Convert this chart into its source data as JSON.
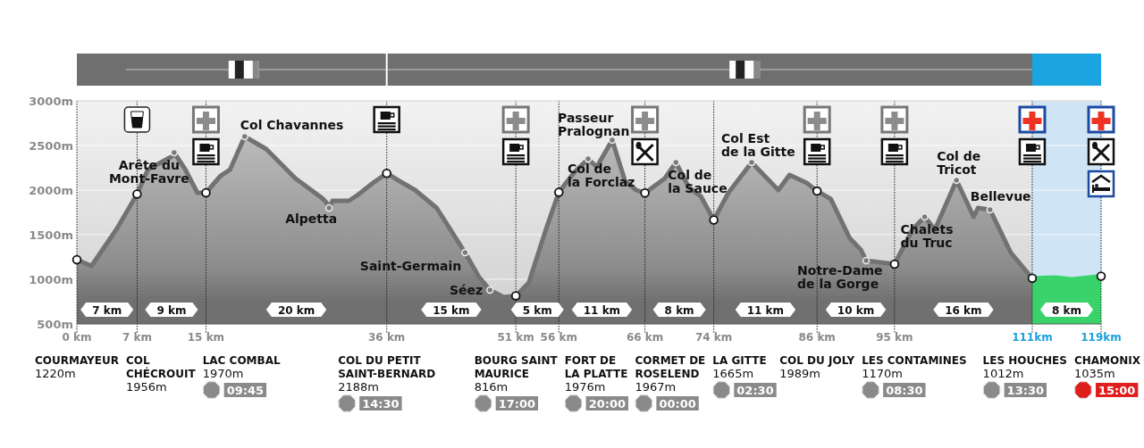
{
  "chart_data": {
    "type": "area",
    "xlim": [
      0,
      119
    ],
    "ylim": [
      500,
      3000
    ],
    "xticks": [
      {
        "value": 0,
        "label": "0 km"
      },
      {
        "value": 7,
        "label": "7 km"
      },
      {
        "value": 15,
        "label": "15 km"
      },
      {
        "value": 36,
        "label": "36 km"
      },
      {
        "value": 51,
        "label": "51 km"
      },
      {
        "value": 56,
        "label": "56 km"
      },
      {
        "value": 66,
        "label": "66 km"
      },
      {
        "value": 74,
        "label": "74 km"
      },
      {
        "value": 86,
        "label": "86 km"
      },
      {
        "value": 95,
        "label": "95 km"
      },
      {
        "value": 111,
        "label": "111km"
      },
      {
        "value": 119,
        "label": "119km"
      }
    ],
    "yticks": [
      {
        "value": 500,
        "label": "500m"
      },
      {
        "value": 1000,
        "label": "1000m"
      },
      {
        "value": 1500,
        "label": "1500m"
      },
      {
        "value": 2000,
        "label": "2000m"
      },
      {
        "value": 2500,
        "label": "2500m"
      },
      {
        "value": 3000,
        "label": "3000m"
      }
    ],
    "grid": true,
    "bands": [
      {
        "axis": "x",
        "from": 111,
        "to": 119,
        "color": "#cfe5f6"
      }
    ],
    "series": [
      {
        "color": "#727272",
        "x": [
          0,
          1.7,
          4.6,
          7,
          8.25,
          11.1,
          11.3,
          12.6,
          14,
          15,
          16.7,
          17.8,
          19.5,
          22,
          25.4,
          28.5,
          29,
          29.3,
          29.7,
          31.6,
          32.7,
          34.4,
          36,
          37.5,
          39.3,
          41.8,
          45.1,
          46.7,
          48,
          49.6,
          51,
          52.5,
          54.5,
          56,
          57.8,
          59.4,
          60.4,
          62.2,
          63.7,
          65,
          66,
          68.3,
          69.6,
          71.1,
          72.5,
          74,
          75.7,
          78.4,
          81.5,
          82.8,
          84.8,
          86,
          87.6,
          89.8,
          91.1,
          91.7,
          95,
          97.1,
          98.5,
          99.7,
          102.2,
          104.2,
          104.7,
          106.1,
          108.5,
          111
        ],
        "values": [
          1220,
          1150,
          1560,
          1956,
          2230,
          2380,
          2420,
          2230,
          1970,
          1970,
          2160,
          2230,
          2600,
          2460,
          2130,
          1910,
          1860,
          1800,
          1880,
          1880,
          1950,
          2080,
          2188,
          2100,
          2000,
          1800,
          1300,
          1030,
          880,
          800,
          816,
          960,
          1560,
          1976,
          2200,
          2350,
          2260,
          2560,
          2100,
          2000,
          1967,
          2130,
          2310,
          2030,
          1930,
          1665,
          1970,
          2310,
          2000,
          2170,
          2080,
          1989,
          1900,
          1460,
          1330,
          1210,
          1170,
          1560,
          1700,
          1560,
          2110,
          1700,
          1800,
          1780,
          1300,
          1012
        ]
      },
      {
        "type": "area",
        "color": "#3ad36b",
        "x": [
          111,
          113.8,
          115.6,
          119
        ],
        "values": [
          1012,
          1020,
          1000,
          1035
        ]
      },
      {
        "type": "scatter",
        "color": "#ffffff",
        "marker": "circle",
        "x": [
          0,
          7,
          15,
          36,
          51,
          56,
          66,
          74,
          86,
          95,
          111,
          119
        ],
        "values": [
          1220,
          1956,
          1970,
          2188,
          816,
          1976,
          1967,
          1665,
          1989,
          1170,
          1012,
          1035
        ]
      }
    ],
    "annotations": [
      "COURMAYEUR\n1220m",
      "COL\nCHÉCROUIT\n1956m",
      "LAC COMBAL\n1970m",
      "09:45",
      "COL DU PETIT\nSAINT-BERNARD\n2188m",
      "14:30",
      "BOURG SAINT\nMAURICE\n816m",
      "17:00",
      "FORT DE\nLA PLATTE\n1976m",
      "20:00",
      "CORMET DE\nROSELEND\n1967m",
      "00:00",
      "LA GITTE\n1665m",
      "02:30",
      "COL DU JOLY\n1989m",
      "LES CONTAMINES\n1170m",
      "08:30",
      "LES HOUCHES\n1012m",
      "13:30",
      "CHAMONIX\n1035m",
      "15:00",
      "7 km",
      "9 km",
      "20 km",
      "15 km",
      "5 km",
      "11 km",
      "8 km",
      "11 km",
      "10 km",
      "16 km",
      "8 km",
      {
        "text": "Arête du\nMont-Favre",
        "x": 11.3,
        "y": 2420
      },
      {
        "text": "Col Chavannes",
        "x": 19.5,
        "y": 2600
      },
      {
        "text": "Alpetta",
        "x": 29.3,
        "y": 1800
      },
      {
        "text": "Saint-Germain",
        "x": 45.1,
        "y": 1300
      },
      {
        "text": "Séez",
        "x": 48,
        "y": 880
      },
      {
        "text": "Col de\nla Forclaz",
        "x": 59.4,
        "y": 2350
      },
      {
        "text": "Passeur\nPralognan",
        "x": 62.2,
        "y": 2560
      },
      {
        "text": "Col de\nla Sauce",
        "x": 69.6,
        "y": 2310
      },
      {
        "text": "Col Est\nde la Gitte",
        "x": 78.4,
        "y": 2310
      },
      {
        "text": "Notre-Dame\nde la Gorge",
        "x": 91.7,
        "y": 1210
      },
      {
        "text": "Chalets\ndu Truc",
        "x": 98.5,
        "y": 1700
      },
      {
        "text": "Col de\nTricot",
        "x": 102.2,
        "y": 2110
      },
      {
        "text": "Bellevue",
        "x": 106.1,
        "y": 1780
      }
    ]
  }
}
